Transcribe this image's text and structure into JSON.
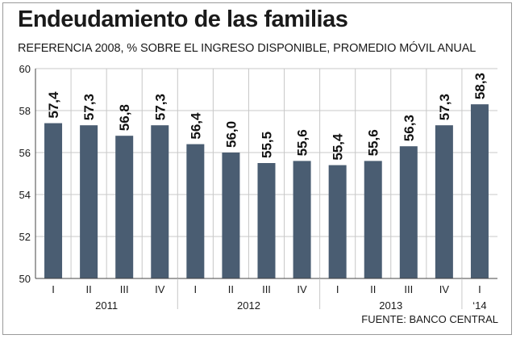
{
  "title": "Endeudamiento de las familias",
  "subtitle": "REFERENCIA 2008, % SOBRE EL INGRESO DISPONIBLE, PROMEDIO MÓVIL ANUAL",
  "source": "FUENTE: BANCO CENTRAL",
  "colors": {
    "bar": "#4a5d72",
    "grid": "#c8c8c8",
    "axis": "#444444"
  },
  "chart_data": {
    "type": "bar",
    "title": "Endeudamiento de las familias",
    "subtitle": "REFERENCIA 2008, % SOBRE EL INGRESO DISPONIBLE, PROMEDIO MÓVIL ANUAL",
    "categories": [
      "I",
      "II",
      "III",
      "IV",
      "I",
      "II",
      "III",
      "IV",
      "I",
      "II",
      "III",
      "IV",
      "I"
    ],
    "values": [
      57.4,
      57.3,
      56.8,
      57.3,
      56.4,
      56.0,
      55.5,
      55.6,
      55.4,
      55.6,
      56.3,
      57.3,
      58.3
    ],
    "data_labels": [
      "57,4",
      "57,3",
      "56,8",
      "57,3",
      "56,4",
      "56,0",
      "55,5",
      "55,6",
      "55,4",
      "55,6",
      "56,3",
      "57,3",
      "58,3"
    ],
    "groups": [
      {
        "label": "2011",
        "count": 4
      },
      {
        "label": "2012",
        "count": 4
      },
      {
        "label": "2013",
        "count": 4
      },
      {
        "label": "‘14",
        "count": 1
      }
    ],
    "ylim": [
      50,
      60
    ],
    "yticks": [
      50,
      52,
      54,
      56,
      58,
      60
    ],
    "xlabel": "",
    "ylabel": "",
    "grid": true,
    "legend": "none"
  }
}
